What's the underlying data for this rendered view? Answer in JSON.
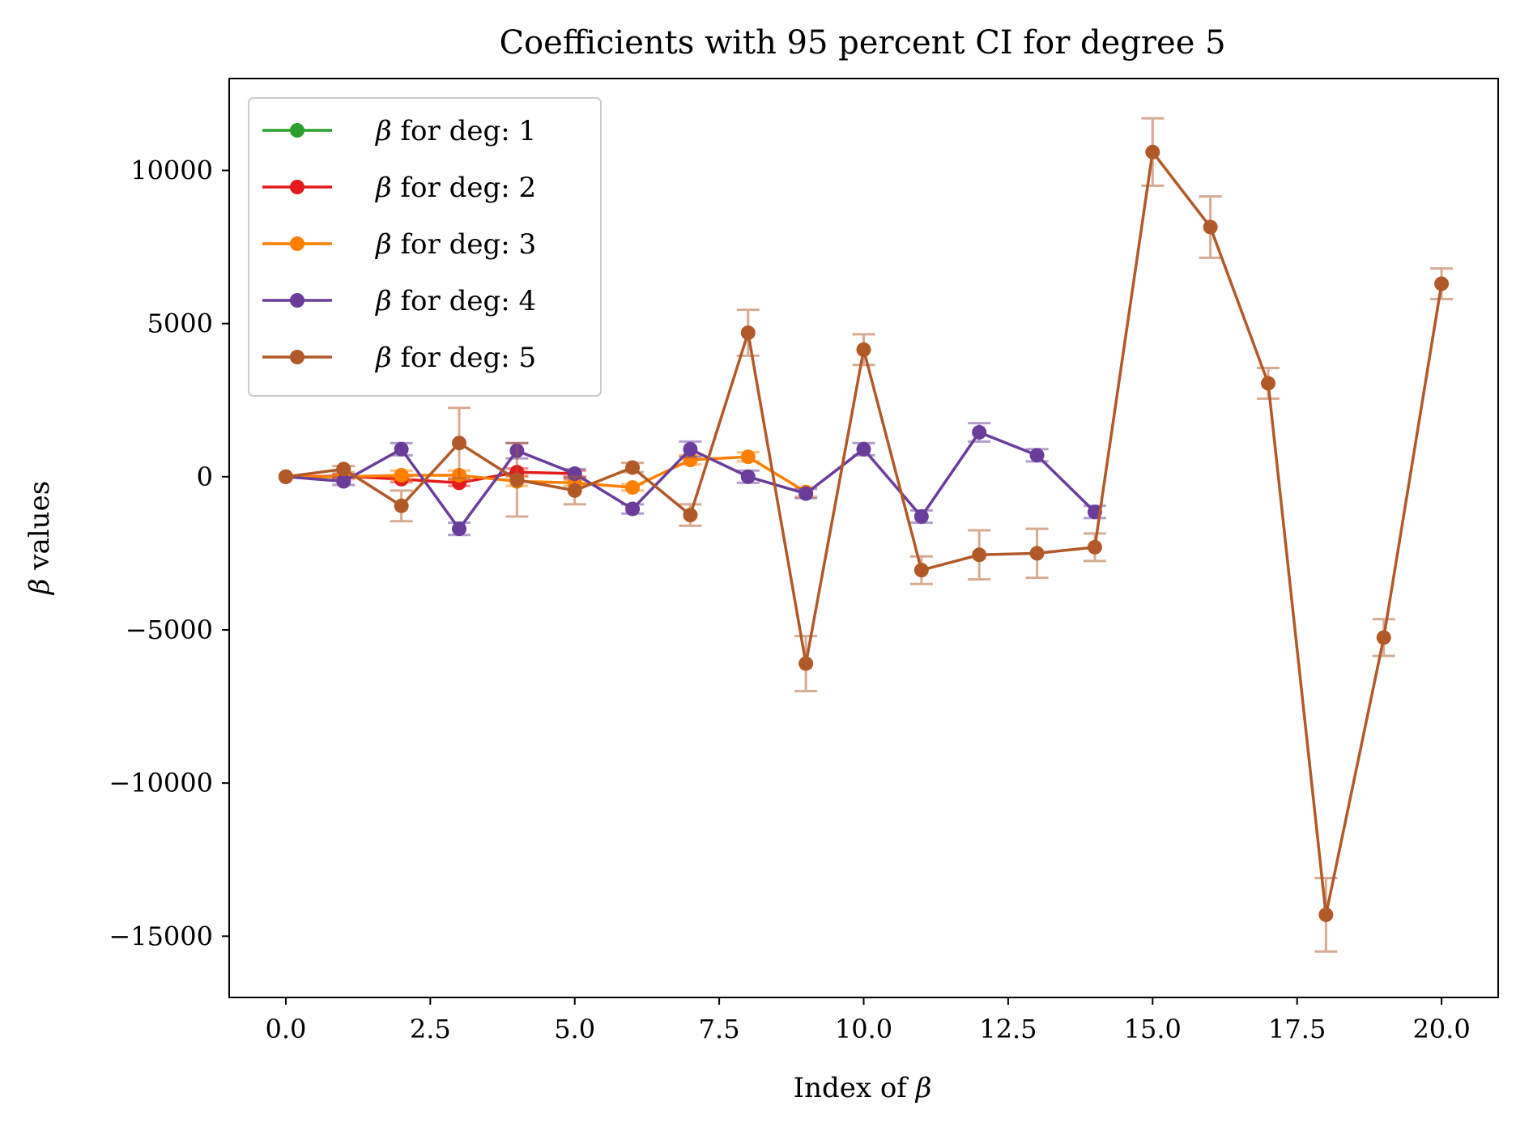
{
  "chart_data": {
    "type": "line",
    "title": "Coefficients with 95 percent CI for degree 5",
    "xlabel": "Index of β",
    "ylabel": "β values",
    "xlim": [
      -0.98,
      20.98
    ],
    "ylim": [
      -17000,
      13000
    ],
    "xticks": [
      0.0,
      2.5,
      5.0,
      7.5,
      10.0,
      12.5,
      15.0,
      17.5,
      20.0
    ],
    "xtick_labels": [
      "0.0",
      "2.5",
      "5.0",
      "7.5",
      "10.0",
      "12.5",
      "15.0",
      "17.5",
      "20.0"
    ],
    "yticks": [
      10000,
      5000,
      0,
      -5000,
      -10000,
      -15000
    ],
    "ytick_labels": [
      "10000",
      "5000",
      "0",
      "−5000",
      "−10000",
      "−15000"
    ],
    "grid": false,
    "legend_position": "top-left",
    "series": [
      {
        "name": "β for deg: 1",
        "color": "#2ca02c",
        "x": [
          0,
          1
        ],
        "values": [
          0,
          0
        ],
        "ci": [
          0,
          0
        ]
      },
      {
        "name": "β for deg: 2",
        "color": "#e41a1c",
        "x": [
          0,
          1,
          2,
          3,
          4,
          5
        ],
        "values": [
          0,
          20,
          -80,
          -200,
          150,
          100
        ],
        "ci": [
          0,
          60,
          100,
          100,
          120,
          100
        ]
      },
      {
        "name": "β for deg: 3",
        "color": "#ff7f00",
        "x": [
          0,
          1,
          2,
          3,
          4,
          5,
          6,
          7,
          8,
          9
        ],
        "values": [
          0,
          0,
          50,
          50,
          -150,
          -200,
          -350,
          550,
          650,
          -500
        ],
        "ci": [
          0,
          80,
          150,
          150,
          150,
          100,
          100,
          150,
          150,
          150
        ]
      },
      {
        "name": "β for deg: 4",
        "color": "#6a3d9a",
        "x": [
          0,
          1,
          2,
          3,
          4,
          5,
          6,
          7,
          8,
          9,
          10,
          11,
          12,
          13,
          14
        ],
        "values": [
          0,
          -150,
          900,
          -1700,
          850,
          100,
          -1050,
          900,
          0,
          -550,
          900,
          -1300,
          1450,
          700,
          -1150
        ],
        "ci": [
          0,
          120,
          200,
          200,
          250,
          150,
          150,
          250,
          200,
          150,
          200,
          200,
          300,
          200,
          200
        ]
      },
      {
        "name": "β for deg: 5",
        "color": "#b15928",
        "x": [
          0,
          1,
          2,
          3,
          4,
          5,
          6,
          7,
          8,
          9,
          10,
          11,
          12,
          13,
          14,
          15,
          16,
          17,
          18,
          19,
          20
        ],
        "values": [
          0,
          250,
          -950,
          1100,
          -100,
          -450,
          300,
          -1250,
          4700,
          -6100,
          4150,
          -3050,
          -2550,
          -2500,
          -2300,
          10600,
          8150,
          3050,
          -14300,
          -5250,
          6300
        ],
        "ci": [
          0,
          100,
          500,
          1150,
          1200,
          450,
          150,
          350,
          750,
          900,
          500,
          450,
          800,
          800,
          450,
          1100,
          1000,
          500,
          1200,
          600,
          500
        ]
      }
    ]
  }
}
